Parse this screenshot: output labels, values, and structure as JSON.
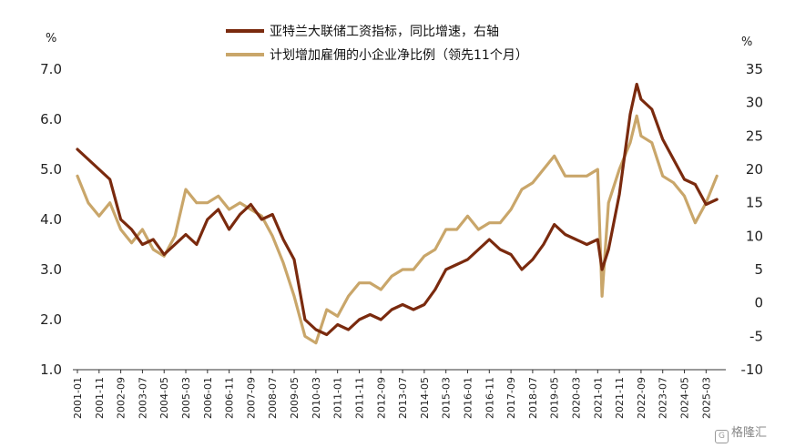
{
  "chart_data": {
    "type": "line",
    "left_axis": {
      "unit": "%",
      "ylim": [
        1.0,
        7.0
      ],
      "ticks": [
        "1.0",
        "2.0",
        "3.0",
        "4.0",
        "5.0",
        "6.0",
        "7.0"
      ]
    },
    "right_axis": {
      "unit": "%",
      "ylim": [
        -10,
        35
      ],
      "ticks": [
        "-10",
        "-5",
        "0",
        "5",
        "10",
        "15",
        "20",
        "25",
        "30",
        "35"
      ]
    },
    "x_ticks": [
      "2001-01",
      "2001-11",
      "2002-09",
      "2003-07",
      "2004-05",
      "2005-03",
      "2006-01",
      "2006-11",
      "2007-09",
      "2008-07",
      "2009-05",
      "2010-03",
      "2011-01",
      "2011-11",
      "2012-09",
      "2013-07",
      "2014-05",
      "2015-03",
      "2016-01",
      "2016-11",
      "2017-09",
      "2018-07",
      "2019-05",
      "2020-03",
      "2021-01",
      "2021-11",
      "2022-09",
      "2023-07",
      "2024-05",
      "2025-03"
    ],
    "series": [
      {
        "name": "亚特兰大联储工资指标，同比增速，右轴",
        "color": "#7a2a0e",
        "axis": "left",
        "points": [
          [
            "2001-01",
            5.4
          ],
          [
            "2001-06",
            5.2
          ],
          [
            "2001-11",
            5.0
          ],
          [
            "2002-04",
            4.8
          ],
          [
            "2002-09",
            4.0
          ],
          [
            "2003-02",
            3.8
          ],
          [
            "2003-07",
            3.5
          ],
          [
            "2003-12",
            3.6
          ],
          [
            "2004-05",
            3.3
          ],
          [
            "2004-10",
            3.5
          ],
          [
            "2005-03",
            3.7
          ],
          [
            "2005-08",
            3.5
          ],
          [
            "2006-01",
            4.0
          ],
          [
            "2006-06",
            4.2
          ],
          [
            "2006-11",
            3.8
          ],
          [
            "2007-04",
            4.1
          ],
          [
            "2007-09",
            4.3
          ],
          [
            "2008-02",
            4.0
          ],
          [
            "2008-07",
            4.1
          ],
          [
            "2008-12",
            3.6
          ],
          [
            "2009-05",
            3.2
          ],
          [
            "2009-10",
            2.0
          ],
          [
            "2010-03",
            1.8
          ],
          [
            "2010-08",
            1.7
          ],
          [
            "2011-01",
            1.9
          ],
          [
            "2011-06",
            1.8
          ],
          [
            "2011-11",
            2.0
          ],
          [
            "2012-04",
            2.1
          ],
          [
            "2012-09",
            2.0
          ],
          [
            "2013-02",
            2.2
          ],
          [
            "2013-07",
            2.3
          ],
          [
            "2013-12",
            2.2
          ],
          [
            "2014-05",
            2.3
          ],
          [
            "2014-10",
            2.6
          ],
          [
            "2015-03",
            3.0
          ],
          [
            "2015-08",
            3.1
          ],
          [
            "2016-01",
            3.2
          ],
          [
            "2016-06",
            3.4
          ],
          [
            "2016-11",
            3.6
          ],
          [
            "2017-04",
            3.4
          ],
          [
            "2017-09",
            3.3
          ],
          [
            "2018-02",
            3.0
          ],
          [
            "2018-07",
            3.2
          ],
          [
            "2018-12",
            3.5
          ],
          [
            "2019-05",
            3.9
          ],
          [
            "2019-10",
            3.7
          ],
          [
            "2020-03",
            3.6
          ],
          [
            "2020-08",
            3.5
          ],
          [
            "2021-01",
            3.6
          ],
          [
            "2021-03",
            3.0
          ],
          [
            "2021-06",
            3.4
          ],
          [
            "2021-11",
            4.5
          ],
          [
            "2022-04",
            6.1
          ],
          [
            "2022-07",
            6.7
          ],
          [
            "2022-09",
            6.4
          ],
          [
            "2023-02",
            6.2
          ],
          [
            "2023-07",
            5.6
          ],
          [
            "2023-12",
            5.2
          ],
          [
            "2024-05",
            4.8
          ],
          [
            "2024-10",
            4.7
          ],
          [
            "2025-03",
            4.3
          ],
          [
            "2025-08",
            4.4
          ]
        ]
      },
      {
        "name": "计划增加雇佣的小企业净比例（领先11个月）",
        "color": "#c9a66a",
        "axis": "right",
        "points": [
          [
            "2001-01",
            19
          ],
          [
            "2001-06",
            15
          ],
          [
            "2001-11",
            13
          ],
          [
            "2002-04",
            15
          ],
          [
            "2002-09",
            11
          ],
          [
            "2003-02",
            9
          ],
          [
            "2003-07",
            11
          ],
          [
            "2003-12",
            8
          ],
          [
            "2004-05",
            7
          ],
          [
            "2004-10",
            10
          ],
          [
            "2005-03",
            17
          ],
          [
            "2005-08",
            15
          ],
          [
            "2006-01",
            15
          ],
          [
            "2006-06",
            16
          ],
          [
            "2006-11",
            14
          ],
          [
            "2007-04",
            15
          ],
          [
            "2007-09",
            14
          ],
          [
            "2008-02",
            13
          ],
          [
            "2008-07",
            10
          ],
          [
            "2008-12",
            6
          ],
          [
            "2009-05",
            1
          ],
          [
            "2009-10",
            -5
          ],
          [
            "2010-03",
            -6
          ],
          [
            "2010-08",
            -1
          ],
          [
            "2011-01",
            -2
          ],
          [
            "2011-06",
            1
          ],
          [
            "2011-11",
            3
          ],
          [
            "2012-04",
            3
          ],
          [
            "2012-09",
            2
          ],
          [
            "2013-02",
            4
          ],
          [
            "2013-07",
            5
          ],
          [
            "2013-12",
            5
          ],
          [
            "2014-05",
            7
          ],
          [
            "2014-10",
            8
          ],
          [
            "2015-03",
            11
          ],
          [
            "2015-08",
            11
          ],
          [
            "2016-01",
            13
          ],
          [
            "2016-06",
            11
          ],
          [
            "2016-11",
            12
          ],
          [
            "2017-04",
            12
          ],
          [
            "2017-09",
            14
          ],
          [
            "2018-02",
            17
          ],
          [
            "2018-07",
            18
          ],
          [
            "2018-12",
            20
          ],
          [
            "2019-05",
            22
          ],
          [
            "2019-10",
            19
          ],
          [
            "2020-03",
            19
          ],
          [
            "2020-08",
            19
          ],
          [
            "2021-01",
            20
          ],
          [
            "2021-03",
            1
          ],
          [
            "2021-06",
            15
          ],
          [
            "2021-11",
            20
          ],
          [
            "2022-04",
            24
          ],
          [
            "2022-07",
            28
          ],
          [
            "2022-09",
            25
          ],
          [
            "2023-02",
            24
          ],
          [
            "2023-07",
            19
          ],
          [
            "2023-12",
            18
          ],
          [
            "2024-05",
            16
          ],
          [
            "2024-10",
            12
          ],
          [
            "2025-03",
            15
          ],
          [
            "2025-08",
            19
          ]
        ]
      }
    ],
    "legend_position": "top-right",
    "grid": false
  },
  "watermark": "格隆汇"
}
